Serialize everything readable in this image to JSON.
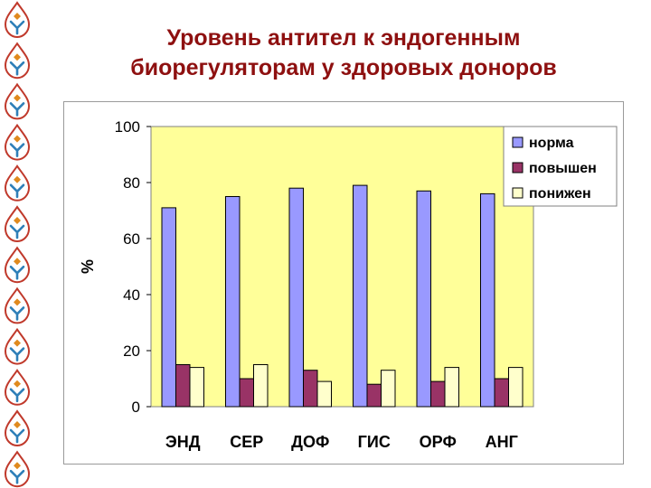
{
  "slide": {
    "title_line1": "Уровень антител к эндогенным",
    "title_line2": "биорегуляторам у здоровых доноров",
    "title_color": "#8e1010",
    "decoration_icon": "drop-person-logo-icon"
  },
  "chart_data": {
    "type": "bar",
    "title": "",
    "xlabel": "",
    "ylabel": "%",
    "ylim": [
      0,
      100
    ],
    "yticks": [
      0,
      20,
      40,
      60,
      80,
      100
    ],
    "grid": false,
    "legend_position": "top-right",
    "plot_background": "#ffff99",
    "categories": [
      "ЭНД",
      "СЕР",
      "ДОФ",
      "ГИС",
      "ОРФ",
      "АНГ"
    ],
    "series": [
      {
        "name": "норма",
        "color": "#9999ff",
        "values": [
          71,
          75,
          78,
          79,
          77,
          76
        ]
      },
      {
        "name": "повышен",
        "color": "#993366",
        "values": [
          15,
          10,
          13,
          8,
          9,
          10
        ]
      },
      {
        "name": "понижен",
        "color": "#ffffcc",
        "values": [
          14,
          15,
          9,
          13,
          14,
          14
        ]
      }
    ]
  }
}
